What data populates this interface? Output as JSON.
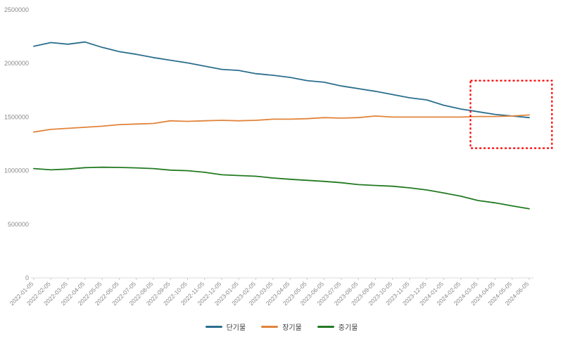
{
  "chart_data": {
    "type": "line",
    "title": "",
    "xlabel": "",
    "ylabel": "",
    "ylim": [
      0,
      2500000
    ],
    "yticks": [
      0,
      500000,
      1000000,
      1500000,
      2000000,
      2500000
    ],
    "grid": false,
    "legend_position": "bottom-center",
    "axis_text_color": "#8a8a8a",
    "x": [
      "2022-01-05",
      "2022-02-05",
      "2022-03-05",
      "2022-04-05",
      "2022-05-05",
      "2022-06-05",
      "2022-07-05",
      "2022-08-05",
      "2022-09-05",
      "2022-10-05",
      "2022-11-05",
      "2022-12-05",
      "2023-01-05",
      "2023-02-05",
      "2023-03-05",
      "2023-04-05",
      "2023-05-05",
      "2023-06-05",
      "2023-07-05",
      "2023-08-05",
      "2023-09-05",
      "2023-10-05",
      "2023-11-05",
      "2023-12-05",
      "2024-01-05",
      "2024-02-05",
      "2024-03-05",
      "2024-04-05",
      "2024-05-05",
      "2024-06-05"
    ],
    "series": [
      {
        "name": "단기물",
        "color": "#2c6e8e",
        "values": [
          2160000,
          2195000,
          2180000,
          2200000,
          2150000,
          2110000,
          2085000,
          2055000,
          2030000,
          2005000,
          1975000,
          1945000,
          1935000,
          1905000,
          1890000,
          1870000,
          1840000,
          1825000,
          1790000,
          1765000,
          1740000,
          1710000,
          1680000,
          1660000,
          1610000,
          1575000,
          1550000,
          1525000,
          1510000,
          1495000
        ]
      },
      {
        "name": "장기물",
        "color": "#e2843b",
        "values": [
          1360000,
          1385000,
          1395000,
          1405000,
          1415000,
          1430000,
          1435000,
          1440000,
          1465000,
          1460000,
          1465000,
          1470000,
          1465000,
          1470000,
          1480000,
          1480000,
          1485000,
          1495000,
          1490000,
          1495000,
          1510000,
          1500000,
          1500000,
          1500000,
          1500000,
          1500000,
          1505000,
          1505000,
          1510000,
          1520000
        ]
      },
      {
        "name": "중기물",
        "color": "#227a22",
        "values": [
          1020000,
          1008000,
          1015000,
          1028000,
          1032000,
          1030000,
          1026000,
          1020000,
          1005000,
          1000000,
          985000,
          962000,
          955000,
          948000,
          932000,
          920000,
          910000,
          900000,
          888000,
          870000,
          862000,
          855000,
          840000,
          820000,
          792000,
          762000,
          722000,
          700000,
          672000,
          645000
        ]
      }
    ],
    "annotation": {
      "type": "rect",
      "purpose": "highlight-crossover",
      "x_range": [
        "2024-02-22",
        "2024-07-15"
      ],
      "y_range": [
        1210000,
        1840000
      ],
      "color": "#ff0000",
      "line_style": "dashed"
    }
  }
}
